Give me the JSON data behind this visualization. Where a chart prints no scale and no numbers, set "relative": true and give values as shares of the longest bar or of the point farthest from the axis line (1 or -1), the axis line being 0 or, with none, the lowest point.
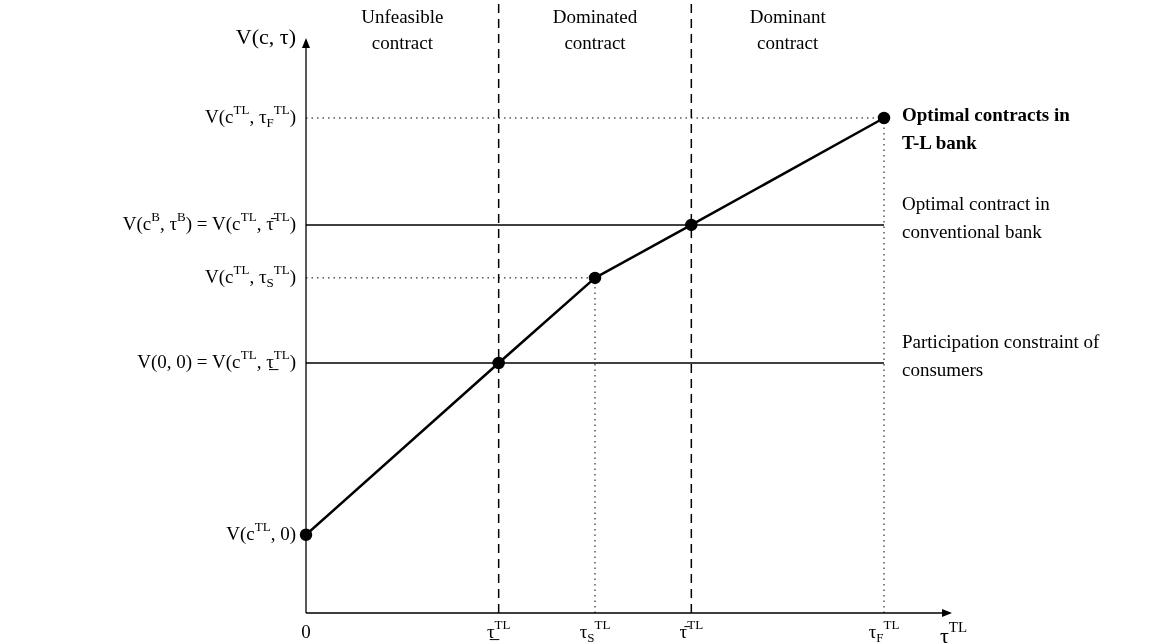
{
  "chart_data": {
    "type": "line",
    "relative": true,
    "xlabel": "τ$^{TL}$",
    "ylabel": "V(c, τ)",
    "categories": [
      "0",
      null,
      "τ̲$^{TL}$",
      "τ$_{S}$$^{TL}$",
      "τ̄$^{TL}$",
      null,
      "τ$_{F}$$^{TL}$"
    ],
    "series": [
      {
        "name": "Optimal contracts in T-L bank",
        "color": "#000000",
        "values": [
          0.158,
          null,
          0.505,
          0.677,
          0.784,
          null,
          1
        ]
      }
    ],
    "annotations": [
      "V(c$^{TL}$, 0)",
      "V(0, 0) = V(c$^{TL}$, τ̲$^{TL}$)",
      "V(c$^{TL}$, τ$_{S}$$^{TL}$)",
      "V(c$^{B}$, τ$^{B}$) = V(c$^{TL}$, τ̄$^{TL}$)",
      "V(c$^{TL}$, τ$_{F}$$^{TL}$)",
      "Unfeasible contract",
      "Dominated contract",
      "Dominant contract"
    ],
    "ref_lines": [
      {
        "axis": "y",
        "value": 0.784,
        "label": "Optimal contract in conventional bank",
        "line_style": "solid"
      },
      {
        "axis": "y",
        "value": 0.505,
        "label": "Participation constraint of consumers",
        "line_style": "solid"
      },
      {
        "axis": "x",
        "value": "τ̲$^{TL}$",
        "line_style": "dashed"
      },
      {
        "axis": "x",
        "value": "τ̄$^{TL}$",
        "line_style": "dashed"
      },
      {
        "axis": "y",
        "value": 1,
        "line_style": "dotted"
      },
      {
        "axis": "y",
        "value": 0.677,
        "line_style": "dotted"
      },
      {
        "axis": "x",
        "value": "τ$_{S}$$^{TL}$",
        "line_style": "dotted"
      },
      {
        "axis": "x",
        "value": "τ$_{F}$$^{TL}$",
        "line_style": "dotted"
      }
    ],
    "marker": "circle",
    "line_style": "solid"
  }
}
